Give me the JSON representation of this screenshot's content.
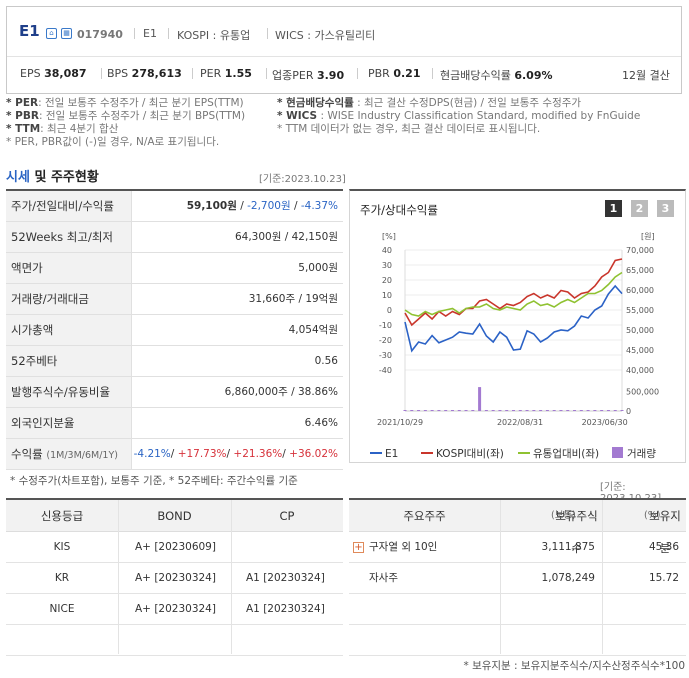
{
  "header": {
    "ticker": "E1",
    "code": "017940",
    "company": "E1",
    "market": "KOSPI : 유통업",
    "wics": "WICS : 가스유틸리티",
    "stats": [
      {
        "label": "EPS",
        "value": "38,087"
      },
      {
        "label": "BPS",
        "value": "278,613"
      },
      {
        "label": "PER",
        "value": "1.55"
      },
      {
        "label": "업종PER",
        "value": "3.90"
      },
      {
        "label": "PBR",
        "value": "0.21"
      },
      {
        "label": "현금배당수익률",
        "value": "6.09%"
      }
    ],
    "period": "12월 결산"
  },
  "notes": {
    "per": [
      "* PER",
      ": 전일 보통주 수정주가 / 최근 분기 EPS(TTM)"
    ],
    "pbr": [
      "* PBR",
      ": 전일 보통주 수정주가 / 최근 분기 BPS(TTM)"
    ],
    "ttm": [
      "* TTM",
      ": 최근 4분기 합산"
    ],
    "neg": "* PER, PBR값이 (-)일 경우, N/A로 표기됩니다.",
    "div": [
      "* 현금배당수익률",
      " : 최근 결산 수정DPS(현금) / 전일 보통주 수정주가"
    ],
    "wics": [
      "* WICS",
      " : WISE Industry Classification Standard, modified by FnGuide"
    ],
    "ttm2": "* TTM 데이터가 없는 경우, 최근 결산 데이터로 표시됩니다."
  },
  "market_section": {
    "title_a": "시세",
    "title_b": "및 주주현황",
    "date": "[기준:2023.10.23]",
    "rows": [
      {
        "label": "주가/전일대비/수익률",
        "price": "59,100원",
        "sep1": " / ",
        "change": "-2,700원",
        "sep2": " / ",
        "pct": "-4.37%"
      },
      {
        "label": "52Weeks 최고/최저",
        "value": "64,300원 / 42,150원"
      },
      {
        "label": "액면가",
        "value": "5,000원"
      },
      {
        "label": "거래량/거래대금",
        "value": "31,660주 / 19억원"
      },
      {
        "label": "시가총액",
        "value": "4,054억원"
      },
      {
        "label": "52주베타",
        "value": "0.56"
      },
      {
        "label": "발행주식수/유동비율",
        "value": "6,860,000주 / 38.86%"
      },
      {
        "label": "외국인지분율",
        "value": "6.46%"
      }
    ],
    "returns": {
      "label": "수익률",
      "sub": "(1M/3M/6M/1Y)",
      "r1": "-4.21%",
      "r2": "+17.73%",
      "r3": "+21.36%",
      "r4": "+36.02%",
      "sep": "/ "
    },
    "footnote": "* 수정주가(차트포함), 보통주 기준, * 52주베타: 주간수익률 기준"
  },
  "chart_panel": {
    "title": "주가/상대수익률",
    "buttons": [
      "1",
      "2",
      "3"
    ],
    "active_button": "1"
  },
  "chart_data": {
    "type": "line",
    "left_axis_unit": "[%]",
    "right_axis_unit": "[원]",
    "left_ticks": [
      "40",
      "30",
      "20",
      "10",
      "0",
      "-10",
      "-20",
      "-30",
      "-40"
    ],
    "right_ticks": [
      "70,000",
      "65,000",
      "60,000",
      "55,000",
      "50,000",
      "45,000",
      "40,000"
    ],
    "volume_ticks": [
      "500,000",
      "0"
    ],
    "x_ticks": [
      "2021/10/29",
      "2022/08/31",
      "2023/06/30"
    ],
    "ylim_left": [
      -40,
      40
    ],
    "ylim_right": [
      40000,
      70000
    ],
    "series": [
      {
        "name": "E1",
        "color": "#2b62c6",
        "axis": "right",
        "values": [
          52000,
          44800,
          47000,
          46500,
          48600,
          46800,
          47500,
          48200,
          49500,
          49200,
          49000,
          51500,
          48500,
          47000,
          49500,
          48200,
          45000,
          45200,
          49800,
          49000,
          47000,
          48000,
          49500,
          50000,
          49800,
          51000,
          53500,
          53000,
          55000,
          56000,
          59000,
          61000,
          59100
        ]
      },
      {
        "name": "KOSPI대비(좌)",
        "color": "#c9352b",
        "axis": "left",
        "values": [
          -2,
          -10,
          -6,
          -2,
          -6,
          -1,
          -4,
          -1,
          -3,
          1,
          1,
          6,
          7,
          4,
          1,
          4,
          3,
          5,
          9,
          11,
          8,
          10,
          8,
          13,
          12,
          8,
          11,
          12,
          16,
          22,
          25,
          33,
          34
        ]
      },
      {
        "name": "유통업대비(좌)",
        "color": "#8fc231",
        "axis": "left",
        "values": [
          0,
          -3,
          -4,
          -1,
          -3,
          -1,
          0,
          1,
          -2,
          1,
          2,
          2,
          4,
          1,
          0,
          2,
          1,
          0,
          4,
          6,
          3,
          4,
          2,
          5,
          7,
          5,
          8,
          11,
          11,
          13,
          17,
          22,
          25
        ]
      }
    ],
    "volume": {
      "name": "거래량",
      "color": "#a37ad1",
      "values": [
        3000,
        4000,
        2000,
        3000,
        6000,
        5000,
        3000,
        4000,
        2000,
        3000,
        3000,
        620000,
        10000,
        4000,
        3000,
        5000,
        2000,
        4000,
        3000,
        4000,
        2000,
        3000,
        5000,
        3000,
        2000,
        4000,
        3000,
        5000,
        4000,
        3000,
        6000,
        4000,
        3000
      ]
    }
  },
  "bottom": {
    "date": "[기준: 2023.10.23]",
    "rating_headers": [
      "신용등급",
      "BOND",
      "CP"
    ],
    "ratings": [
      {
        "agency": "KIS",
        "bond": "A+  [20230609]",
        "cp": ""
      },
      {
        "agency": "KR",
        "bond": "A+  [20230324]",
        "cp": "A1  [20230324]"
      },
      {
        "agency": "NICE",
        "bond": "A+  [20230324]",
        "cp": "A1  [20230324]"
      }
    ],
    "holder_headers": [
      "주요주주",
      "보유주식수",
      "(보통)",
      "보유지분",
      "(%)"
    ],
    "holders": [
      {
        "name": "구자열 외 10인",
        "shares": "3,111,875",
        "pct": "45.36",
        "expand": "+"
      },
      {
        "name": "자사주",
        "shares": "1,078,249",
        "pct": "15.72"
      }
    ],
    "footnote": "* 보유지분 : 보유지분주식수/지수산정주식수*100"
  }
}
